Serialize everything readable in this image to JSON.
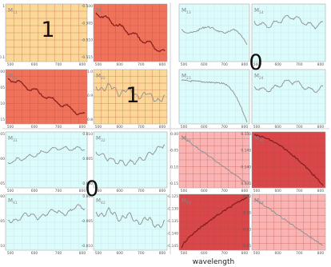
{
  "palette": {
    "yellow": "#fcd898",
    "orange_red": "#f0725a",
    "cyan": "#dcfbfb",
    "light_red": "#fbb4b4",
    "salmon": "#f6999a",
    "dark_red": "#d9474b",
    "grid_line": "#b34a3a",
    "cyan_grid": "#c8e8ea",
    "trace": "#8e8e8e",
    "trace_dark": "#8a1f1f"
  },
  "chart_data": {
    "type": "line",
    "description": "4x4 grid of Mueller-matrix element spectra (M11..M44) versus wavelength, colour coded; blocks labelled 1 and 0",
    "xlabel": "wavelength",
    "block_labels": [
      "1",
      "1",
      "0",
      "0"
    ],
    "panels": [
      {
        "title": "M11",
        "bg": "yellow",
        "grid": true,
        "line": "none",
        "x_ticks": [
          "500",
          "600",
          "700",
          "800"
        ],
        "y_ticks": [
          "1",
          "",
          "0.1"
        ]
      },
      {
        "title": "M12",
        "bg": "orange_red",
        "grid": true,
        "line": "down",
        "x_ticks": [
          "500",
          "600",
          "700",
          "800"
        ],
        "y_ticks": [
          "-0.500",
          "-0.505",
          "-0.510",
          "-0.515"
        ]
      },
      {
        "title": "M13",
        "bg": "cyan",
        "grid": true,
        "line": "flat_dip",
        "x_ticks": [
          "500",
          "600",
          "700",
          "800"
        ],
        "y_ticks": [
          "",
          "",
          ""
        ]
      },
      {
        "title": "M14",
        "bg": "cyan",
        "grid": true,
        "line": "noisy",
        "x_ticks": [
          "500",
          "600",
          "700",
          "800"
        ],
        "y_ticks": [
          "",
          "",
          ""
        ]
      },
      {
        "title": "M21",
        "bg": "orange_red",
        "grid": true,
        "line": "down",
        "x_ticks": [
          "500",
          "600",
          "700",
          "800"
        ],
        "y_ticks": [
          "-0.500",
          "-0.505",
          "-0.510",
          "-0.515"
        ]
      },
      {
        "title": "M22",
        "bg": "yellow",
        "grid": true,
        "line": "noisy_down",
        "x_ticks": [
          "500",
          "600",
          "700",
          "800"
        ],
        "y_ticks": [
          "1.0",
          "0.9",
          "0.8"
        ]
      },
      {
        "title": "M23",
        "bg": "cyan",
        "grid": true,
        "line": "drop",
        "x_ticks": [
          "500",
          "600",
          "700",
          "800"
        ],
        "y_ticks": [
          "",
          "",
          ""
        ]
      },
      {
        "title": "M24",
        "bg": "cyan",
        "grid": true,
        "line": "noisy",
        "x_ticks": [
          "500",
          "600",
          "700",
          "800"
        ],
        "y_ticks": [
          "",
          "",
          ""
        ]
      },
      {
        "title": "M31",
        "bg": "cyan",
        "grid": true,
        "line": "rise_flat",
        "x_ticks": [
          "500",
          "600",
          "700",
          "800"
        ],
        "y_ticks": [
          "0.005",
          "0.000",
          "-0.005"
        ]
      },
      {
        "title": "M32",
        "bg": "cyan",
        "grid": true,
        "line": "dip_rise",
        "x_ticks": [
          "500",
          "600",
          "700",
          "800"
        ],
        "y_ticks": [
          "0.010",
          "0.005",
          "0.000"
        ]
      },
      {
        "title": "M33",
        "bg": "light_red",
        "grid": true,
        "line": "linear_down",
        "x_ticks": [
          "500",
          "600",
          "700",
          "800"
        ],
        "y_ticks": [
          "0.00",
          "-0.05",
          "-0.10",
          "-0.15"
        ]
      },
      {
        "title": "M34",
        "bg": "dark_red",
        "grid": true,
        "line": "curve_down",
        "x_ticks": [
          "500",
          "600",
          "700",
          "800"
        ],
        "y_ticks": [
          "0.150",
          "0.145",
          "0.140",
          "0.135"
        ]
      },
      {
        "title": "M41",
        "bg": "cyan",
        "grid": true,
        "line": "noisy_rise",
        "x_ticks": [
          "500",
          "600",
          "700",
          "800"
        ],
        "y_ticks": [
          "0.000",
          "-0.005",
          "-0.010"
        ]
      },
      {
        "title": "M42",
        "bg": "cyan",
        "grid": true,
        "line": "noisy_down",
        "x_ticks": [
          "500",
          "600",
          "700",
          "800"
        ],
        "y_ticks": [
          "0.000",
          "-0.005",
          "-0.010"
        ]
      },
      {
        "title": "M43",
        "bg": "dark_red",
        "grid": true,
        "line": "curve_up",
        "x_ticks": [
          "500",
          "600",
          "700",
          "800"
        ],
        "y_ticks": [
          "-0.125",
          "-0.130",
          "-0.135",
          "-0.140",
          "-0.145"
        ]
      },
      {
        "title": "M44",
        "bg": "light_red",
        "grid": true,
        "line": "linear_down",
        "x_ticks": [
          "500",
          "600",
          "700",
          "800"
        ],
        "y_ticks": [
          "0.00",
          "-0.05",
          "-0.10",
          "-0.15"
        ]
      }
    ]
  }
}
